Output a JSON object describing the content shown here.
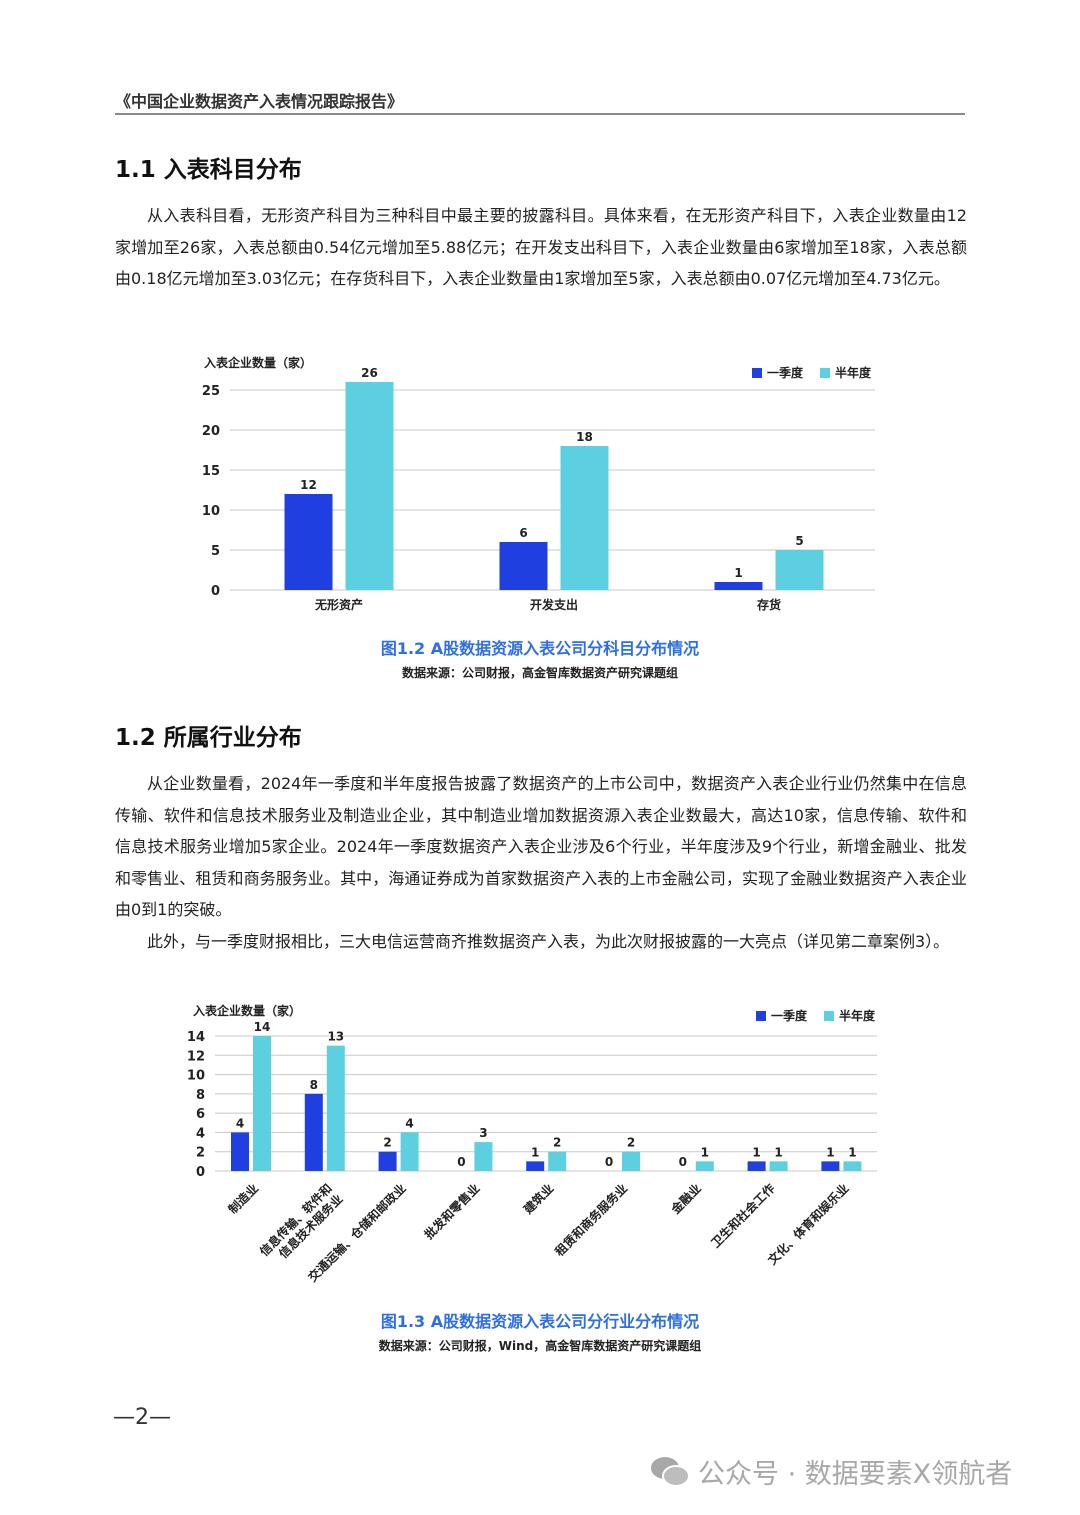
{
  "header": {
    "title": "《中国企业数据资产入表情况跟踪报告》"
  },
  "section1": {
    "heading": "1.1 入表科目分布",
    "paragraph": "从入表科目看，无形资产科目为三种科目中最主要的披露科目。具体来看，在无形资产科目下，入表企业数量由12家增加至26家，入表总额由0.54亿元增加至5.88亿元；在开发支出科目下，入表企业数量由6家增加至18家，入表总额由0.18亿元增加至3.03亿元；在存货科目下，入表企业数量由1家增加至5家，入表总额由0.07亿元增加至4.73亿元。",
    "caption": "图1.2 A股数据资源入表公司分科目分布情况",
    "source": "数据来源：公司财报，高金智库数据资产研究课题组"
  },
  "section2": {
    "heading": "1.2 所属行业分布",
    "paragraph1": "从企业数量看，2024年一季度和半年度报告披露了数据资产的上市公司中，数据资产入表企业行业仍然集中在信息传输、软件和信息技术服务业及制造业企业，其中制造业增加数据资源入表企业数最大，高达10家，信息传输、软件和信息技术服务业增加5家企业。2024年一季度数据资产入表企业涉及6个行业，半年度涉及9个行业，新增金融业、批发和零售业、租赁和商务服务业。其中，海通证券成为首家数据资产入表的上市金融公司，实现了金融业数据资产入表企业由0到1的突破。",
    "paragraph2": "此外，与一季度财报相比，三大电信运营商齐推数据资产入表，为此次财报披露的一大亮点（详见第二章案例3）。",
    "caption": "图1.3 A股数据资源入表公司分行业分布情况",
    "source": "数据来源：公司财报，Wind，高金智库数据资产研究课题组"
  },
  "chart_data": [
    {
      "type": "bar",
      "ylabel": "入表企业数量（家）",
      "categories": [
        "无形资产",
        "开发支出",
        "存货"
      ],
      "series": [
        {
          "name": "一季度",
          "values": [
            12,
            6,
            1
          ],
          "color": "#1f3fe0"
        },
        {
          "name": "半年度",
          "values": [
            26,
            18,
            5
          ],
          "color": "#5cd0e0"
        }
      ],
      "yticks": [
        0,
        5,
        10,
        15,
        20,
        25
      ],
      "ylim": [
        0,
        25
      ],
      "grid": true,
      "legend": "top-right"
    },
    {
      "type": "bar",
      "ylabel": "入表企业数量（家）",
      "categories": [
        "制造业",
        "信息传输、软件和\n信息技术服务业",
        "交通运输、仓储和邮政业",
        "批发和零售业",
        "建筑业",
        "租赁和商务服务业",
        "金融业",
        "卫生和社会工作",
        "文化、体育和娱乐业"
      ],
      "series": [
        {
          "name": "一季度",
          "values": [
            4,
            8,
            2,
            0,
            1,
            0,
            0,
            1,
            1
          ],
          "color": "#1f3fe0"
        },
        {
          "name": "半年度",
          "values": [
            14,
            13,
            4,
            3,
            2,
            2,
            1,
            1,
            1
          ],
          "color": "#5cd0e0"
        }
      ],
      "yticks": [
        0,
        2,
        4,
        6,
        8,
        10,
        12,
        14
      ],
      "ylim": [
        0,
        14
      ],
      "grid": true,
      "legend": "top-right"
    }
  ],
  "footer": {
    "page_number": "—2—",
    "watermark": "公众号 · 数据要素X领航者",
    "watermark_icon": "wechat-icon"
  }
}
